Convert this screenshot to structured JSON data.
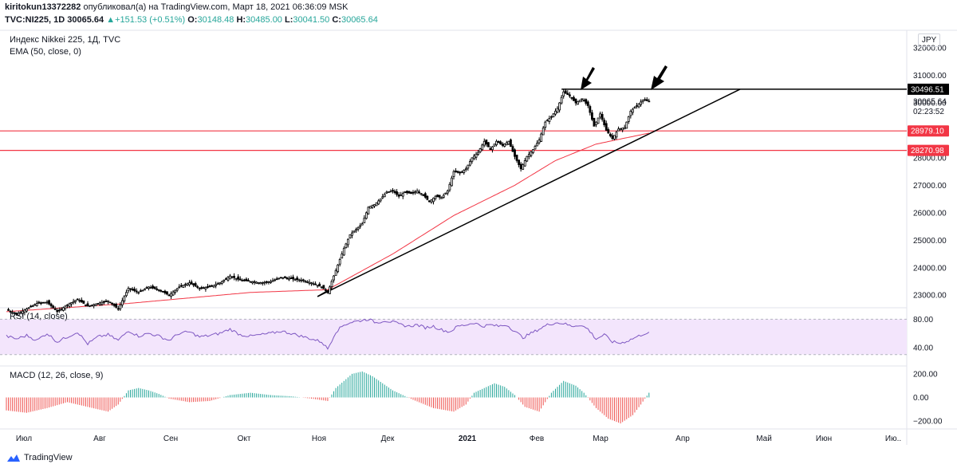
{
  "header": {
    "author": "kiritokun13372282",
    "published": "опубликовал(а) на TradingView.com, Март 18, 2021 06:36:09 MSK",
    "symbol": "TVC:NI225, 1D",
    "last": "30065.64",
    "change_arrow": "▲",
    "change": "+151.53 (+0.51%)",
    "o_label": "O:",
    "o_val": "30148.48",
    "h_label": "H:",
    "h_val": "30485.00",
    "l_label": "L:",
    "l_val": "30041.50",
    "c_label": "C:",
    "c_val": "30065.64"
  },
  "legend": {
    "title": "Индекс Nikkei 225, 1Д, TVC",
    "ema": "EMA (50, close, 0)",
    "rsi": "RSI (14, close)",
    "macd": "MACD (12, 26, close, 9)"
  },
  "currency": "JPY",
  "footer": {
    "brand": "TradingView",
    "icon": "tradingview-logo-icon"
  },
  "colors": {
    "up": "#26a69a",
    "down": "#ef5350",
    "ema": "#f23645",
    "rsi": "#7e57c2",
    "rsi_band": "#f3e5fc",
    "hline": "#f23645",
    "trend": "#000000",
    "candle": "#000000"
  },
  "price_labels": {
    "top": "30496.51",
    "current": "30065.64",
    "countdown": "02:23:52",
    "level1": "28979.10",
    "level2": "28270.98"
  },
  "chart_data": [
    {
      "type": "candlestick",
      "title": "Индекс Nikkei 225, 1Д, TVC",
      "x_ticks": [
        "Июл",
        "Авг",
        "Сен",
        "Окт",
        "Ноя",
        "Дек",
        "2021",
        "Фев",
        "Мар",
        "Апр",
        "Май",
        "Июн",
        "Ию.."
      ],
      "y_ticks": [
        "23000.00",
        "24000.00",
        "25000.00",
        "26000.00",
        "27000.00",
        "28000.00",
        "29000.00",
        "30000.00",
        "31000.00",
        "32000.00"
      ],
      "ylim": [
        22600,
        32700
      ],
      "close_path": [
        [
          0,
          22480
        ],
        [
          5,
          22300
        ],
        [
          10,
          22500
        ],
        [
          15,
          22700
        ],
        [
          20,
          22750
        ],
        [
          25,
          22400
        ],
        [
          30,
          22650
        ],
        [
          35,
          22850
        ],
        [
          40,
          22600
        ],
        [
          45,
          22700
        ],
        [
          50,
          22800
        ],
        [
          55,
          22500
        ],
        [
          60,
          23250
        ],
        [
          65,
          23100
        ],
        [
          70,
          23300
        ],
        [
          75,
          23200
        ],
        [
          80,
          23000
        ],
        [
          85,
          23300
        ],
        [
          90,
          23450
        ],
        [
          95,
          23250
        ],
        [
          100,
          23300
        ],
        [
          105,
          23450
        ],
        [
          110,
          23700
        ],
        [
          115,
          23550
        ],
        [
          120,
          23500
        ],
        [
          125,
          23450
        ],
        [
          130,
          23500
        ],
        [
          135,
          23650
        ],
        [
          140,
          23600
        ],
        [
          145,
          23550
        ],
        [
          150,
          23450
        ],
        [
          155,
          23300
        ],
        [
          158,
          23100
        ],
        [
          160,
          23500
        ],
        [
          163,
          24100
        ],
        [
          166,
          24700
        ],
        [
          169,
          25200
        ],
        [
          172,
          25400
        ],
        [
          175,
          25600
        ],
        [
          178,
          26200
        ],
        [
          181,
          26300
        ],
        [
          184,
          26500
        ],
        [
          187,
          26750
        ],
        [
          190,
          26800
        ],
        [
          193,
          26600
        ],
        [
          196,
          26750
        ],
        [
          199,
          26700
        ],
        [
          202,
          26800
        ],
        [
          205,
          26650
        ],
        [
          208,
          26400
        ],
        [
          211,
          26600
        ],
        [
          214,
          26550
        ],
        [
          217,
          26800
        ],
        [
          220,
          27500
        ],
        [
          223,
          27450
        ],
        [
          226,
          27600
        ],
        [
          229,
          28000
        ],
        [
          232,
          28200
        ],
        [
          235,
          28600
        ],
        [
          238,
          28300
        ],
        [
          241,
          28600
        ],
        [
          244,
          28450
        ],
        [
          247,
          28600
        ],
        [
          250,
          28050
        ],
        [
          253,
          27600
        ],
        [
          256,
          28050
        ],
        [
          259,
          28300
        ],
        [
          262,
          28650
        ],
        [
          265,
          29300
        ],
        [
          268,
          29500
        ],
        [
          271,
          29800
        ],
        [
          274,
          30400
        ],
        [
          277,
          30250
        ],
        [
          280,
          30000
        ],
        [
          283,
          30150
        ],
        [
          286,
          29900
        ],
        [
          289,
          29150
        ],
        [
          292,
          29600
        ],
        [
          295,
          29000
        ],
        [
          298,
          28700
        ],
        [
          301,
          29050
        ],
        [
          304,
          29100
        ],
        [
          307,
          29700
        ],
        [
          310,
          29900
        ],
        [
          313,
          30100
        ],
        [
          316,
          30065
        ]
      ]
    },
    {
      "type": "line",
      "title": "EMA (50, close, 0)",
      "close_path": [
        [
          0,
          22400
        ],
        [
          60,
          22700
        ],
        [
          120,
          23100
        ],
        [
          158,
          23200
        ],
        [
          190,
          24500
        ],
        [
          220,
          25900
        ],
        [
          250,
          27000
        ],
        [
          270,
          27900
        ],
        [
          290,
          28500
        ],
        [
          316,
          28900
        ]
      ]
    },
    {
      "type": "line",
      "title": "RSI (14, close)",
      "y_ticks": [
        "80.00",
        "40.00"
      ],
      "ylim": [
        15,
        95
      ],
      "band": [
        30,
        70
      ],
      "values": [
        [
          0,
          56
        ],
        [
          5,
          52
        ],
        [
          10,
          57
        ],
        [
          15,
          50
        ],
        [
          20,
          60
        ],
        [
          25,
          48
        ],
        [
          30,
          55
        ],
        [
          35,
          62
        ],
        [
          40,
          45
        ],
        [
          45,
          55
        ],
        [
          50,
          58
        ],
        [
          55,
          50
        ],
        [
          60,
          64
        ],
        [
          65,
          56
        ],
        [
          70,
          60
        ],
        [
          75,
          56
        ],
        [
          80,
          50
        ],
        [
          85,
          60
        ],
        [
          90,
          62
        ],
        [
          95,
          55
        ],
        [
          100,
          57
        ],
        [
          105,
          60
        ],
        [
          110,
          66
        ],
        [
          115,
          58
        ],
        [
          120,
          56
        ],
        [
          125,
          58
        ],
        [
          130,
          60
        ],
        [
          135,
          63
        ],
        [
          140,
          60
        ],
        [
          145,
          56
        ],
        [
          150,
          52
        ],
        [
          155,
          48
        ],
        [
          158,
          38
        ],
        [
          162,
          62
        ],
        [
          166,
          72
        ],
        [
          170,
          76
        ],
        [
          174,
          78
        ],
        [
          178,
          80
        ],
        [
          182,
          75
        ],
        [
          186,
          78
        ],
        [
          190,
          76
        ],
        [
          194,
          72
        ],
        [
          198,
          70
        ],
        [
          202,
          72
        ],
        [
          206,
          68
        ],
        [
          210,
          70
        ],
        [
          214,
          65
        ],
        [
          218,
          62
        ],
        [
          222,
          70
        ],
        [
          226,
          72
        ],
        [
          230,
          75
        ],
        [
          234,
          70
        ],
        [
          238,
          72
        ],
        [
          242,
          70
        ],
        [
          246,
          72
        ],
        [
          250,
          63
        ],
        [
          254,
          54
        ],
        [
          258,
          60
        ],
        [
          262,
          66
        ],
        [
          266,
          72
        ],
        [
          270,
          75
        ],
        [
          274,
          74
        ],
        [
          278,
          70
        ],
        [
          282,
          72
        ],
        [
          286,
          66
        ],
        [
          290,
          52
        ],
        [
          294,
          58
        ],
        [
          298,
          48
        ],
        [
          302,
          46
        ],
        [
          306,
          50
        ],
        [
          310,
          55
        ],
        [
          314,
          60
        ],
        [
          316,
          60
        ]
      ]
    },
    {
      "type": "bar",
      "title": "MACD (12, 26, close, 9)",
      "y_ticks": [
        "200.00",
        "0.00",
        "−200.00"
      ],
      "ylim": [
        -260,
        260
      ]
    }
  ]
}
